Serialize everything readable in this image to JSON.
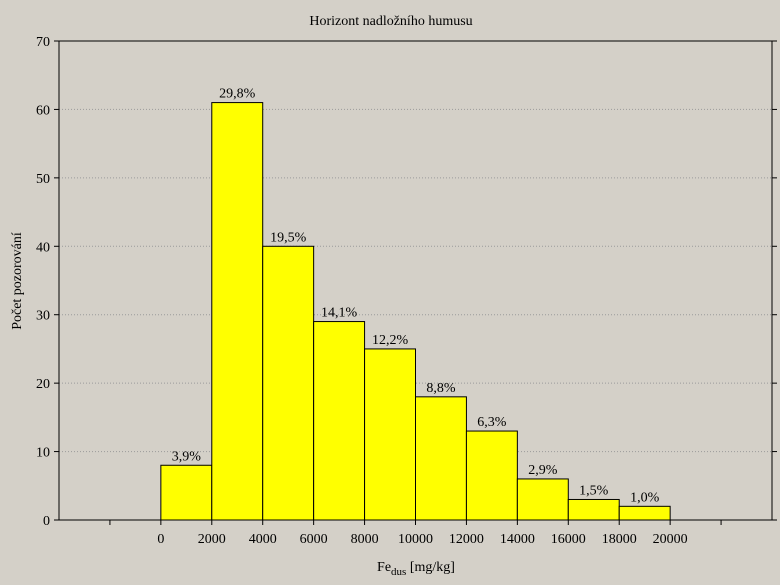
{
  "chart_data": {
    "type": "bar",
    "title": "Horizont nadložního humusu",
    "xlabel_main": "Fe",
    "xlabel_sub": "dus",
    "xlabel_unit": " [mg/kg]",
    "ylabel": "Počet pozorování",
    "ylim": [
      0,
      70
    ],
    "yticks": [
      0,
      10,
      20,
      30,
      40,
      50,
      60,
      70
    ],
    "xlim": [
      -4000,
      24000
    ],
    "xticks": [
      0,
      2000,
      4000,
      6000,
      8000,
      10000,
      12000,
      14000,
      16000,
      18000,
      20000
    ],
    "grid": true,
    "bar_color": "#ffff00",
    "background_color": "#d4d0c8",
    "bins": [
      {
        "start": 0,
        "end": 2000,
        "value": 8,
        "label": "3,9%"
      },
      {
        "start": 2000,
        "end": 4000,
        "value": 61,
        "label": "29,8%"
      },
      {
        "start": 4000,
        "end": 6000,
        "value": 40,
        "label": "19,5%"
      },
      {
        "start": 6000,
        "end": 8000,
        "value": 29,
        "label": "14,1%"
      },
      {
        "start": 8000,
        "end": 10000,
        "value": 25,
        "label": "12,2%"
      },
      {
        "start": 10000,
        "end": 12000,
        "value": 18,
        "label": "8,8%"
      },
      {
        "start": 12000,
        "end": 14000,
        "value": 13,
        "label": "6,3%"
      },
      {
        "start": 14000,
        "end": 16000,
        "value": 6,
        "label": "2,9%"
      },
      {
        "start": 16000,
        "end": 18000,
        "value": 3,
        "label": "1,5%"
      },
      {
        "start": 18000,
        "end": 20000,
        "value": 2,
        "label": "1,0%"
      }
    ]
  }
}
